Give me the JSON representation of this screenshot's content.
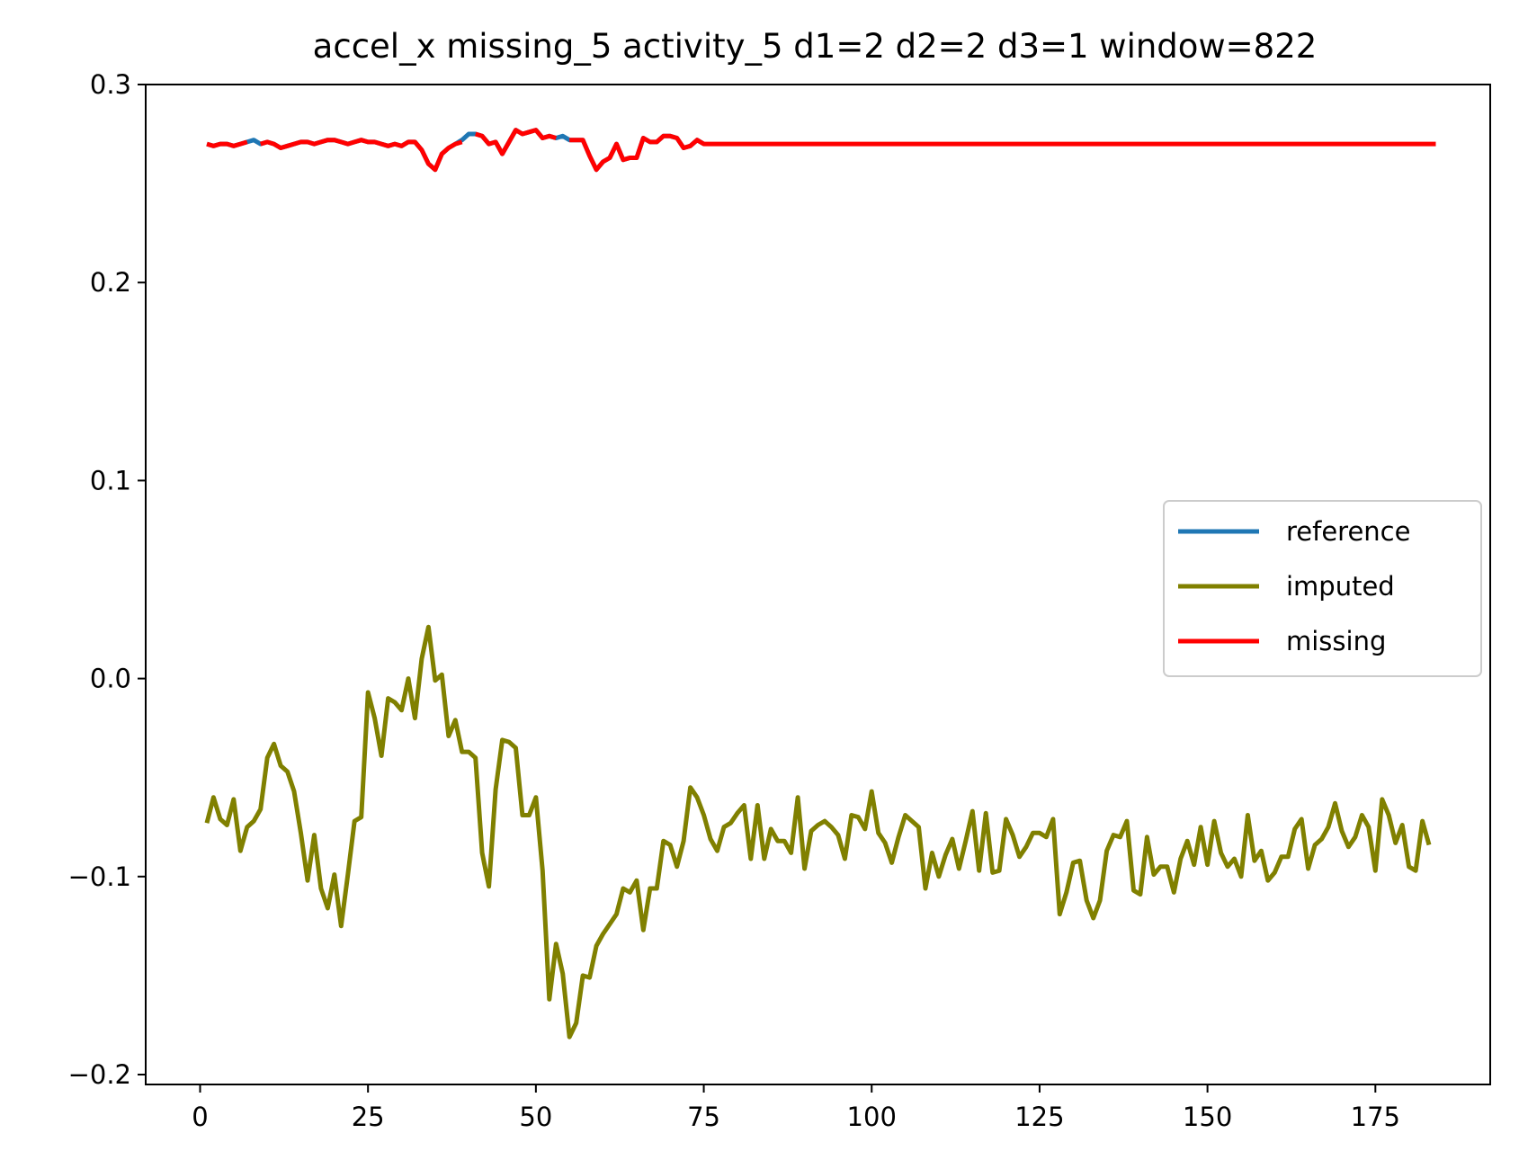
{
  "chart_data": {
    "type": "line",
    "title": "accel_x missing_5 activity_5 d1=2 d2=2 d3=1 window=822",
    "xlabel": "",
    "ylabel": "",
    "xlim": [
      -8.1,
      192.1
    ],
    "ylim": [
      -0.205,
      0.3
    ],
    "x_ticks": [
      0,
      25,
      50,
      75,
      100,
      125,
      150,
      175
    ],
    "x_tick_labels": [
      "0",
      "25",
      "50",
      "75",
      "100",
      "125",
      "150",
      "175"
    ],
    "y_ticks": [
      -0.2,
      -0.1,
      0.0,
      0.1,
      0.2,
      0.3
    ],
    "y_tick_labels": [
      "−0.2",
      "−0.1",
      "0.0",
      "0.1",
      "0.2",
      "0.3"
    ],
    "grid": false,
    "legend_position": "center-right",
    "x_start": 1,
    "series": [
      {
        "name": "reference",
        "color": "#1f77b4",
        "values": [
          0.27,
          0.269,
          0.27,
          0.27,
          0.269,
          0.27,
          0.271,
          0.272,
          0.27,
          0.271,
          0.27,
          0.268,
          0.269,
          0.27,
          0.271,
          0.271,
          0.27,
          0.271,
          0.272,
          0.272,
          0.271,
          0.27,
          0.271,
          0.272,
          0.271,
          0.271,
          0.27,
          0.269,
          0.27,
          0.269,
          0.271,
          0.271,
          0.267,
          0.26,
          0.257,
          0.265,
          0.268,
          0.27,
          0.272,
          0.275,
          0.275,
          0.274,
          0.27,
          0.271,
          0.265,
          0.271,
          0.277,
          0.275,
          0.276,
          0.277,
          0.273,
          0.274,
          0.273,
          0.274,
          0.272,
          0.272,
          0.272,
          0.264,
          0.257,
          0.261,
          0.263,
          0.27,
          0.262,
          0.263,
          0.263,
          0.273,
          0.271,
          0.271,
          0.274,
          0.274,
          0.273,
          0.268,
          0.269,
          0.272,
          0.27
        ]
      },
      {
        "name": "imputed",
        "color": "#808000",
        "values": [
          -0.073,
          -0.06,
          -0.071,
          -0.074,
          -0.061,
          -0.087,
          -0.075,
          -0.072,
          -0.066,
          -0.04,
          -0.033,
          -0.044,
          -0.047,
          -0.057,
          -0.078,
          -0.102,
          -0.079,
          -0.106,
          -0.116,
          -0.099,
          -0.125,
          -0.099,
          -0.072,
          -0.07,
          -0.007,
          -0.02,
          -0.039,
          -0.01,
          -0.012,
          -0.016,
          0.0,
          -0.02,
          0.01,
          0.026,
          -0.001,
          0.002,
          -0.029,
          -0.021,
          -0.037,
          -0.037,
          -0.04,
          -0.088,
          -0.105,
          -0.056,
          -0.031,
          -0.032,
          -0.035,
          -0.069,
          -0.069,
          -0.06,
          -0.097,
          -0.162,
          -0.134,
          -0.149,
          -0.181,
          -0.174,
          -0.15,
          -0.151,
          -0.135,
          -0.129,
          -0.124,
          -0.119,
          -0.106,
          -0.108,
          -0.102,
          -0.127,
          -0.106,
          -0.106,
          -0.082,
          -0.084,
          -0.095,
          -0.082,
          -0.055,
          -0.06,
          -0.069,
          -0.081,
          -0.087,
          -0.075,
          -0.073,
          -0.068,
          -0.064,
          -0.091,
          -0.064,
          -0.091,
          -0.076,
          -0.082,
          -0.082,
          -0.088,
          -0.06,
          -0.096,
          -0.077,
          -0.074,
          -0.072,
          -0.075,
          -0.079,
          -0.091,
          -0.069,
          -0.07,
          -0.076,
          -0.057,
          -0.078,
          -0.083,
          -0.093,
          -0.08,
          -0.069,
          -0.072,
          -0.075,
          -0.106,
          -0.088,
          -0.1,
          -0.089,
          -0.081,
          -0.096,
          -0.082,
          -0.067,
          -0.097,
          -0.068,
          -0.098,
          -0.097,
          -0.071,
          -0.079,
          -0.09,
          -0.085,
          -0.078,
          -0.078,
          -0.08,
          -0.071,
          -0.119,
          -0.108,
          -0.093,
          -0.092,
          -0.112,
          -0.121,
          -0.112,
          -0.087,
          -0.079,
          -0.08,
          -0.072,
          -0.107,
          -0.109,
          -0.08,
          -0.099,
          -0.095,
          -0.095,
          -0.108,
          -0.091,
          -0.082,
          -0.094,
          -0.075,
          -0.094,
          -0.072,
          -0.088,
          -0.095,
          -0.091,
          -0.1,
          -0.069,
          -0.092,
          -0.087,
          -0.102,
          -0.098,
          -0.09,
          -0.09,
          -0.076,
          -0.071,
          -0.096,
          -0.084,
          -0.081,
          -0.075,
          -0.063,
          -0.077,
          -0.085,
          -0.08,
          -0.069,
          -0.075,
          -0.097,
          -0.061,
          -0.069,
          -0.083,
          -0.074,
          -0.095,
          -0.097,
          -0.072,
          -0.084
        ]
      },
      {
        "name": "missing",
        "color": "#ff0000",
        "values": [
          0.27,
          0.269,
          0.27,
          0.27,
          0.269,
          0.27,
          0.271,
          null,
          0.27,
          0.271,
          0.27,
          0.268,
          0.269,
          0.27,
          0.271,
          0.271,
          0.27,
          0.271,
          0.272,
          0.272,
          0.271,
          0.27,
          0.271,
          0.272,
          0.271,
          0.271,
          0.27,
          0.269,
          0.27,
          0.269,
          0.271,
          0.271,
          0.267,
          0.26,
          0.257,
          0.265,
          0.268,
          0.27,
          0.271,
          null,
          0.275,
          0.274,
          0.27,
          0.271,
          0.265,
          0.271,
          0.277,
          0.275,
          0.276,
          0.277,
          0.273,
          0.274,
          0.273,
          null,
          0.272,
          0.272,
          0.272,
          0.264,
          0.257,
          0.261,
          0.263,
          0.27,
          0.262,
          0.263,
          0.263,
          0.273,
          0.271,
          0.271,
          0.274,
          0.274,
          0.273,
          0.268,
          0.269,
          0.272,
          0.27,
          0.27,
          0.27,
          0.27,
          0.27,
          0.27,
          0.27,
          0.27,
          0.27,
          0.27,
          0.27,
          0.27,
          0.27,
          0.27,
          0.27,
          0.27,
          0.27,
          0.27,
          0.27,
          0.27,
          0.27,
          0.27,
          0.27,
          0.27,
          0.27,
          0.27,
          0.27,
          0.27,
          0.27,
          0.27,
          0.27,
          0.27,
          0.27,
          0.27,
          0.27,
          0.27,
          0.27,
          0.27,
          0.27,
          0.27,
          0.27,
          0.27,
          0.27,
          0.27,
          0.27,
          0.27,
          0.27,
          0.27,
          0.27,
          0.27,
          0.27,
          0.27,
          0.27,
          0.27,
          0.27,
          0.27,
          0.27,
          0.27,
          0.27,
          0.27,
          0.27,
          0.27,
          0.27,
          0.27,
          0.27,
          0.27,
          0.27,
          0.27,
          0.27,
          0.27,
          0.27,
          0.27,
          0.27,
          0.27,
          0.27,
          0.27,
          0.27,
          0.27,
          0.27,
          0.27,
          0.27,
          0.27,
          0.27,
          0.27,
          0.27,
          0.27,
          0.27,
          0.27,
          0.27,
          0.27,
          0.27,
          0.27,
          0.27,
          0.27,
          0.27,
          0.27,
          0.27,
          0.27,
          0.27,
          0.27,
          0.27,
          0.27,
          0.27,
          0.27,
          0.27,
          0.27,
          0.27,
          0.27,
          0.27,
          0.27
        ]
      }
    ]
  }
}
